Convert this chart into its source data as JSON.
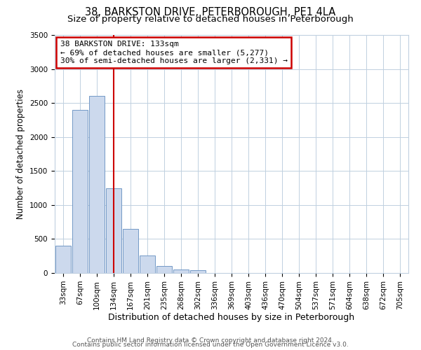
{
  "title": "38, BARKSTON DRIVE, PETERBOROUGH, PE1 4LA",
  "subtitle": "Size of property relative to detached houses in Peterborough",
  "xlabel": "Distribution of detached houses by size in Peterborough",
  "ylabel": "Number of detached properties",
  "bin_labels": [
    "33sqm",
    "67sqm",
    "100sqm",
    "134sqm",
    "167sqm",
    "201sqm",
    "235sqm",
    "268sqm",
    "302sqm",
    "336sqm",
    "369sqm",
    "403sqm",
    "436sqm",
    "470sqm",
    "504sqm",
    "537sqm",
    "571sqm",
    "604sqm",
    "638sqm",
    "672sqm",
    "705sqm"
  ],
  "bar_values": [
    400,
    2400,
    2600,
    1250,
    650,
    260,
    100,
    55,
    40,
    0,
    0,
    0,
    0,
    0,
    0,
    0,
    0,
    0,
    0,
    0,
    0
  ],
  "bar_color": "#ccd9ed",
  "bar_edge_color": "#7399c6",
  "vline_x": 3,
  "vline_color": "#cc0000",
  "ylim": [
    0,
    3500
  ],
  "yticks": [
    0,
    500,
    1000,
    1500,
    2000,
    2500,
    3000,
    3500
  ],
  "annotation_title": "38 BARKSTON DRIVE: 133sqm",
  "annotation_line1": "← 69% of detached houses are smaller (5,277)",
  "annotation_line2": "30% of semi-detached houses are larger (2,331) →",
  "annotation_box_color": "#ffffff",
  "annotation_box_edge_color": "#cc0000",
  "footer_line1": "Contains HM Land Registry data © Crown copyright and database right 2024.",
  "footer_line2": "Contains public sector information licensed under the Open Government Licence v3.0.",
  "background_color": "#ffffff",
  "plot_background_color": "#ffffff",
  "grid_color": "#c0d0e0",
  "title_fontsize": 10.5,
  "subtitle_fontsize": 9.5,
  "xlabel_fontsize": 9,
  "ylabel_fontsize": 8.5,
  "tick_fontsize": 7.5,
  "annotation_fontsize": 8,
  "footer_fontsize": 6.5
}
